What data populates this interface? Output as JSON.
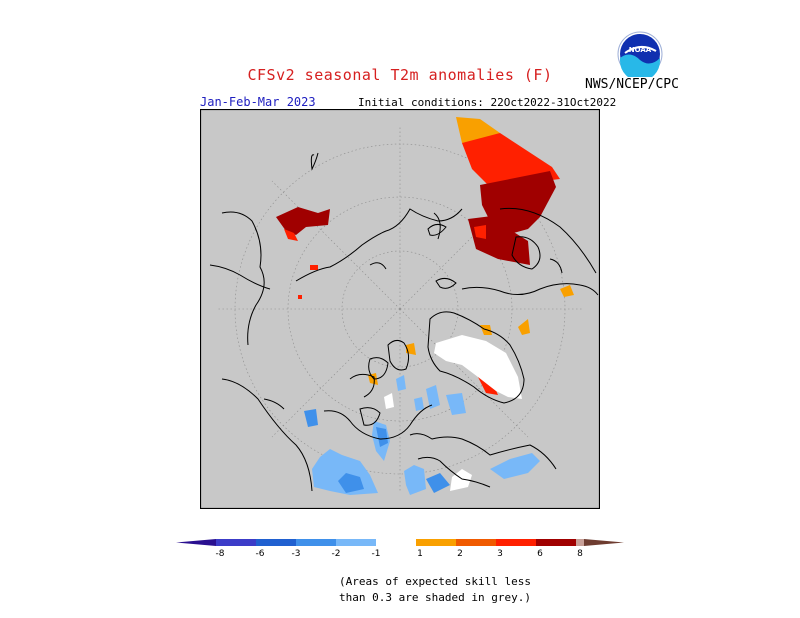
{
  "header": {
    "title": "CFSv2 seasonal T2m anomalies (F)",
    "agency": "NWS/NCEP/CPC",
    "logo_text": "NOAA",
    "season": "Jan-Feb-Mar 2023",
    "initial_conditions": "Initial conditions: 22Oct2022-31Oct2022"
  },
  "map": {
    "projection": "north polar stereographic",
    "background_color": "#c8c8c8",
    "coastline_color": "#000000",
    "grid_color": "#909090",
    "land_color_no_skill": "#c8c8c8"
  },
  "legend": {
    "tick_labels": [
      "-8",
      "-6",
      "-3",
      "-2",
      "-1",
      "1",
      "2",
      "3",
      "6",
      "8"
    ],
    "colors": {
      "lt_-8": "#2a1090",
      "-8_-6": "#3c3cc8",
      "-6_-3": "#2060d0",
      "-3_-2": "#3f90ea",
      "-2_-1": "#78b8f8",
      "-1_1": "#ffffff",
      "1_2": "#f9a000",
      "2_3": "#f05a00",
      "3_6": "#ff2000",
      "6_8": "#a00000",
      "8_plus": "#c8a098",
      "gt_8_arrow": "#6e3c30"
    }
  },
  "notes": {
    "line1": "(Areas of expected skill less",
    "line2": "than 0.3 are shaded in grey.)"
  }
}
